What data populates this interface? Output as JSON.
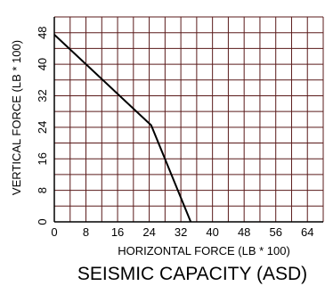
{
  "chart_data": {
    "type": "line",
    "title": "SEISMIC CAPACITY (ASD)",
    "xlabel": "HORIZONTAL FORCE (LB * 100)",
    "ylabel": "VERTICAL FORCE (LB * 100)",
    "xlim": [
      0,
      68
    ],
    "ylim": [
      0,
      52
    ],
    "x_ticks": [
      "0",
      "8",
      "16",
      "24",
      "32",
      "40",
      "48",
      "56",
      "64"
    ],
    "y_ticks": [
      "0",
      "8",
      "16",
      "24",
      "32",
      "40",
      "48"
    ],
    "grid": true,
    "grid_step": 4,
    "series": [
      {
        "x": [
          0,
          24.5,
          34.5
        ],
        "y": [
          47.5,
          24.5,
          0
        ]
      }
    ]
  },
  "colors": {
    "grid": "#5a1a1a",
    "line": "#000000"
  }
}
